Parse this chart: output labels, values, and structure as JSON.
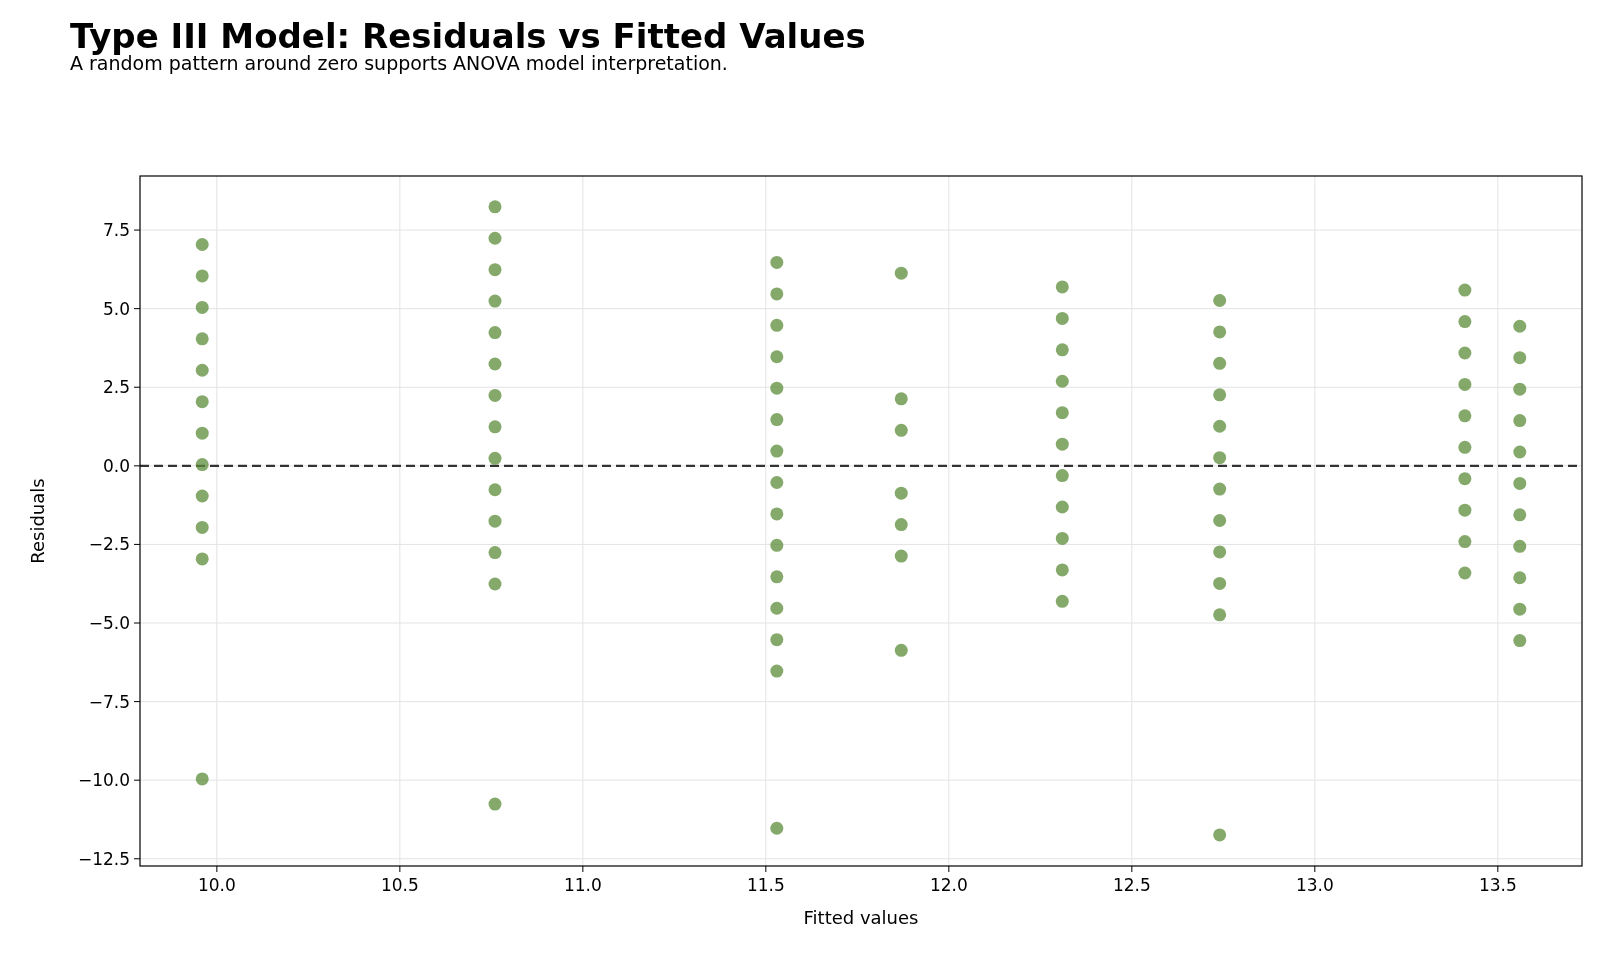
{
  "chart_data": {
    "type": "scatter",
    "title": "Type III Model: Residuals vs Fitted Values",
    "subtitle": "A random pattern around zero supports ANOVA model interpretation.",
    "xlabel": "Fitted values",
    "ylabel": "Residuals",
    "series": [
      {
        "color": "#5b8c3a",
        "x": [
          9.96,
          9.96,
          9.96,
          9.96,
          9.96,
          9.96,
          9.96,
          9.96,
          9.96,
          9.96,
          9.96,
          9.96,
          10.76,
          10.76,
          10.76,
          10.76,
          10.76,
          10.76,
          10.76,
          10.76,
          10.76,
          10.76,
          10.76,
          10.76,
          10.76,
          10.76,
          11.53,
          11.53,
          11.53,
          11.53,
          11.53,
          11.53,
          11.53,
          11.53,
          11.53,
          11.53,
          11.53,
          11.53,
          11.53,
          11.53,
          11.53,
          11.87,
          11.87,
          11.87,
          11.87,
          11.87,
          11.87,
          11.87,
          12.31,
          12.31,
          12.31,
          12.31,
          12.31,
          12.31,
          12.31,
          12.31,
          12.31,
          12.31,
          12.31,
          12.74,
          12.74,
          12.74,
          12.74,
          12.74,
          12.74,
          12.74,
          12.74,
          12.74,
          12.74,
          12.74,
          12.74,
          13.41,
          13.41,
          13.41,
          13.41,
          13.41,
          13.41,
          13.41,
          13.41,
          13.41,
          13.41,
          13.56,
          13.56,
          13.56,
          13.56,
          13.56,
          13.56,
          13.56,
          13.56,
          13.56,
          13.56,
          13.56
        ],
        "values": [
          7.04,
          6.04,
          5.04,
          4.04,
          3.04,
          2.04,
          1.04,
          0.04,
          -0.96,
          -1.96,
          -2.96,
          -9.96,
          8.24,
          7.24,
          6.24,
          5.24,
          4.24,
          3.24,
          2.24,
          1.24,
          0.24,
          -0.76,
          -1.76,
          -2.76,
          -3.76,
          -10.76,
          6.47,
          5.47,
          4.47,
          3.47,
          2.47,
          1.47,
          0.47,
          -0.53,
          -1.53,
          -2.53,
          -3.53,
          -4.53,
          -5.53,
          -6.53,
          -11.53,
          6.13,
          2.13,
          1.13,
          -0.87,
          -1.87,
          -2.87,
          -5.87,
          5.69,
          4.69,
          3.69,
          2.69,
          1.69,
          0.69,
          -0.31,
          -1.31,
          -2.31,
          -3.31,
          -4.31,
          5.26,
          4.26,
          3.26,
          2.26,
          1.26,
          0.26,
          -0.74,
          -1.74,
          -2.74,
          -3.74,
          -4.74,
          -11.74,
          5.59,
          4.59,
          3.59,
          2.59,
          1.59,
          0.59,
          -0.41,
          -1.41,
          -2.41,
          -3.41,
          4.44,
          3.44,
          2.44,
          1.44,
          0.44,
          -0.56,
          -1.56,
          -2.56,
          -3.56,
          -4.56,
          -5.56
        ]
      }
    ],
    "xlim": [
      9.79,
      13.73
    ],
    "xticks": [
      {
        "value": 10,
        "label": "10.0"
      },
      {
        "value": 10.5,
        "label": "10.5"
      },
      {
        "value": 11,
        "label": "11.0"
      },
      {
        "value": 11.5,
        "label": "11.5"
      },
      {
        "value": 12,
        "label": "12.0"
      },
      {
        "value": 12.5,
        "label": "12.5"
      },
      {
        "value": 13,
        "label": "13.0"
      },
      {
        "value": 13.5,
        "label": "13.5"
      }
    ],
    "ylim": [
      -12.73,
      9.22
    ],
    "yticks": [
      {
        "value": -12.5,
        "label": "−12.5"
      },
      {
        "value": -10,
        "label": "−10.0"
      },
      {
        "value": -7.5,
        "label": "−7.5"
      },
      {
        "value": -5,
        "label": "−5.0"
      },
      {
        "value": -2.5,
        "label": "−2.5"
      },
      {
        "value": 0,
        "label": "0.0"
      },
      {
        "value": 2.5,
        "label": "2.5"
      },
      {
        "value": 5,
        "label": "5.0"
      },
      {
        "value": 7.5,
        "label": "7.5"
      }
    ],
    "grid": true,
    "marker": "circle",
    "ref_lines": [
      {
        "axis": "y",
        "value": 0,
        "color": "#333333",
        "line_style": "dashed"
      }
    ]
  }
}
